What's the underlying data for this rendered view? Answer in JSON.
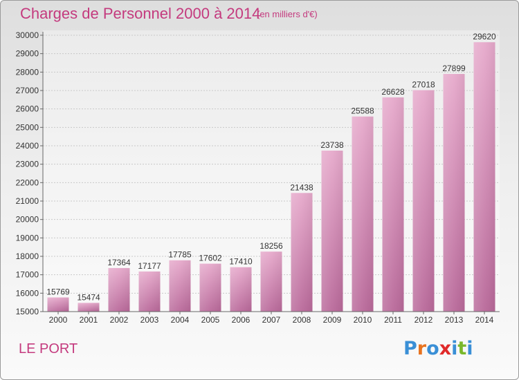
{
  "header": {
    "title": "Charges de Personnel 2000 à 2014",
    "subtitle": "(en milliers d'€)"
  },
  "footer": {
    "place": "LE PORT",
    "logo_letters": [
      "P",
      "r",
      "o",
      "x",
      "i",
      "t",
      "i"
    ],
    "logo_colors": [
      "#3a8fd6",
      "#e8731f",
      "#3a8fd6",
      "#e02a2a",
      "#3a8fd6",
      "#7ab82b",
      "#3a8fd6"
    ]
  },
  "colors": {
    "bar": "#d98fb8",
    "accent": "#c43a7e"
  },
  "chart_data": {
    "type": "bar",
    "categories": [
      "2000",
      "2001",
      "2002",
      "2003",
      "2004",
      "2005",
      "2006",
      "2007",
      "2008",
      "2009",
      "2010",
      "2011",
      "2012",
      "2013",
      "2014"
    ],
    "values": [
      15769,
      15474,
      17364,
      17177,
      17785,
      17602,
      17410,
      18256,
      21438,
      23738,
      25588,
      26628,
      27018,
      27899,
      29620
    ],
    "ylim": [
      15000,
      30000
    ],
    "yticks": [
      15000,
      16000,
      17000,
      18000,
      19000,
      20000,
      21000,
      22000,
      23000,
      24000,
      25000,
      26000,
      27000,
      28000,
      29000,
      30000
    ],
    "grid": true
  }
}
